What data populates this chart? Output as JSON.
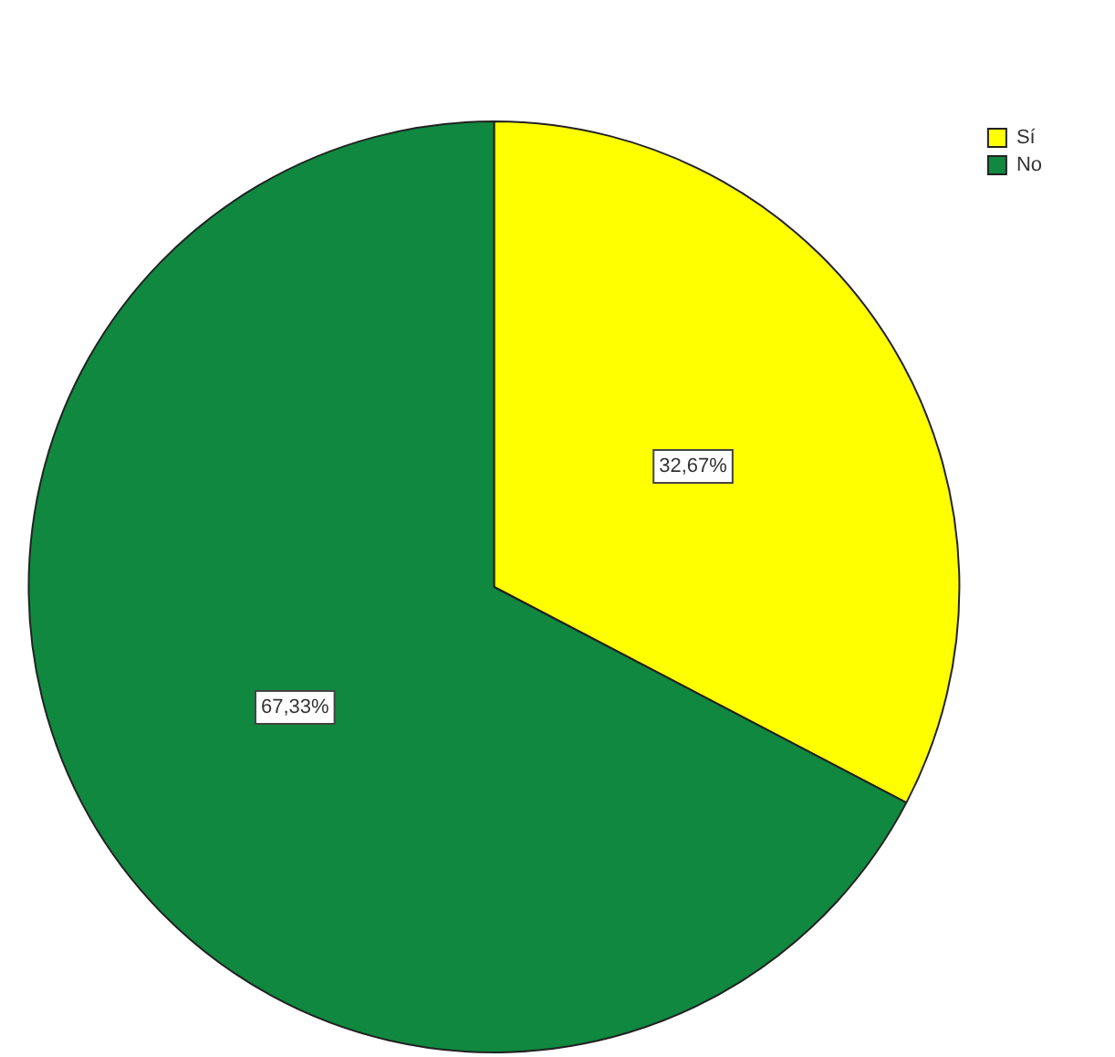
{
  "chart_data": {
    "type": "pie",
    "categories": [
      "Sí",
      "No"
    ],
    "values": [
      32.67,
      67.33
    ],
    "colors": [
      "#ffff00",
      "#108840"
    ],
    "value_labels": [
      "32,67%",
      "67,33%"
    ],
    "legend": "top right"
  }
}
